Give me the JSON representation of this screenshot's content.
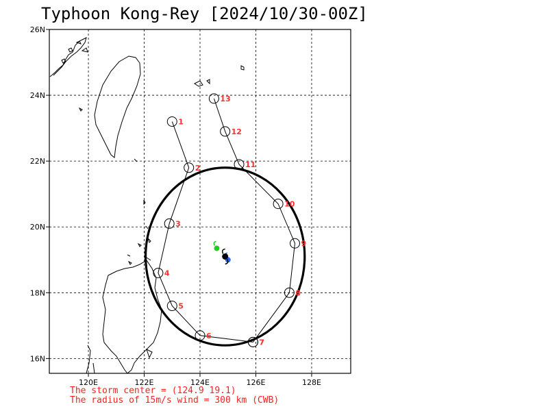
{
  "title": "Typhoon Kong-Rey [2024/10/30-00Z]",
  "map": {
    "lon_range": [
      118.6,
      129.4
    ],
    "lat_range": [
      15.55,
      26.0
    ],
    "lon_ticks": [
      {
        "value": 120,
        "label": "120E"
      },
      {
        "value": 122,
        "label": "122E"
      },
      {
        "value": 124,
        "label": "124E"
      },
      {
        "value": 126,
        "label": "126E"
      },
      {
        "value": 128,
        "label": "128E"
      }
    ],
    "lat_ticks": [
      {
        "value": 16,
        "label": "16N"
      },
      {
        "value": 18,
        "label": "18N"
      },
      {
        "value": 20,
        "label": "20N"
      },
      {
        "value": 22,
        "label": "22N"
      },
      {
        "value": 24,
        "label": "24N"
      },
      {
        "value": 26,
        "label": "26N"
      }
    ],
    "grid": "dashed",
    "colors": {
      "coast": "#000000",
      "grid": "#000000",
      "track": "#000000",
      "labels": "#ff3030",
      "wind_circle": "#000000",
      "center": "#000000",
      "center_alt1": "#22cc22",
      "center_alt2": "#2266ff"
    }
  },
  "storm_center": {
    "lon": 124.9,
    "lat": 19.1,
    "icon": "typhoon-symbol"
  },
  "alt_centers": [
    {
      "lon": 124.6,
      "lat": 19.35,
      "color": "#22cc22"
    },
    {
      "lon": 125.0,
      "lat": 19.0,
      "color": "#2266ff"
    }
  ],
  "wind_radius": {
    "center_lon": 124.9,
    "center_lat": 19.1,
    "lon_radius": 2.85,
    "lat_radius": 2.7
  },
  "track_west": [
    {
      "label": "1",
      "lon": 123.0,
      "lat": 23.2
    },
    {
      "label": "2",
      "lon": 123.6,
      "lat": 21.8
    },
    {
      "label": "3",
      "lon": 122.9,
      "lat": 20.1
    },
    {
      "label": "4",
      "lon": 122.5,
      "lat": 18.6
    },
    {
      "label": "5",
      "lon": 123.0,
      "lat": 17.6
    },
    {
      "label": "6",
      "lon": 124.0,
      "lat": 16.7
    },
    {
      "label": "7",
      "lon": 125.9,
      "lat": 16.5
    }
  ],
  "track_east": [
    {
      "label": "7",
      "lon": 125.9,
      "lat": 16.5
    },
    {
      "label": "8",
      "lon": 127.2,
      "lat": 18.0
    },
    {
      "label": "9",
      "lon": 127.4,
      "lat": 19.5
    },
    {
      "label": "10",
      "lon": 126.8,
      "lat": 20.7
    },
    {
      "label": "11",
      "lon": 125.4,
      "lat": 21.9
    },
    {
      "label": "12",
      "lon": 124.9,
      "lat": 22.9
    },
    {
      "label": "13",
      "lon": 124.5,
      "lat": 23.9
    }
  ],
  "footer": {
    "line1": "The storm center = (124.9 19.1)",
    "line2": "The radius of 15m/s wind = 300 km (CWB)"
  }
}
